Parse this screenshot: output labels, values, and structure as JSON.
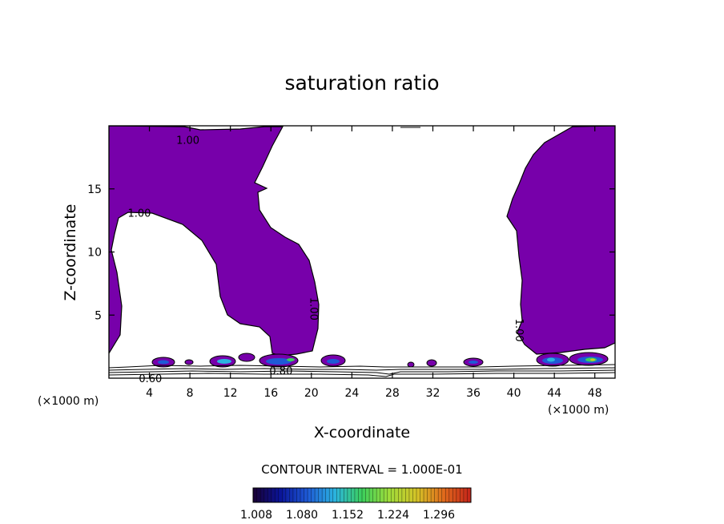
{
  "chart_data": {
    "type": "contour",
    "title": "saturation ratio",
    "xlabel": "X-coordinate",
    "ylabel": "Z-coordinate",
    "x_unit_left": "(×1000 m)",
    "x_unit_right": "(×1000 m)",
    "xlim": [
      0,
      50
    ],
    "ylim": [
      0,
      20
    ],
    "x_ticks": [
      4,
      8,
      12,
      16,
      20,
      24,
      28,
      32,
      36,
      40,
      44,
      48
    ],
    "y_ticks": [
      5,
      10,
      15
    ],
    "contour_labels": [
      {
        "text": "1.00",
        "x": 7.8,
        "z": 18.9,
        "angle": 0
      },
      {
        "text": "1.00",
        "x": 3.0,
        "z": 13.1,
        "angle": 0
      },
      {
        "text": "1.00",
        "x": 20.3,
        "z": 5.5,
        "angle": 90
      },
      {
        "text": "1.00",
        "x": 40.6,
        "z": 3.8,
        "angle": 90
      },
      {
        "text": "0.80",
        "x": 17.0,
        "z": 0.6,
        "angle": 0
      },
      {
        "text": "0.60",
        "x": 4.1,
        "z": 0.0,
        "angle": 0
      }
    ],
    "contour_interval_text": "CONTOUR INTERVAL = 1.000E-01",
    "colorbar_labels": [
      "1.008",
      "1.080",
      "1.152",
      "1.224",
      "1.296"
    ],
    "colors": {
      "filled_region": "#7700aa",
      "colorbar": [
        "#1a0033",
        "#0a1499",
        "#1e5ad6",
        "#2bb4e0",
        "#3ccf5c",
        "#9fdc3a",
        "#d4c427",
        "#e06a1c",
        "#c4231a"
      ]
    }
  }
}
